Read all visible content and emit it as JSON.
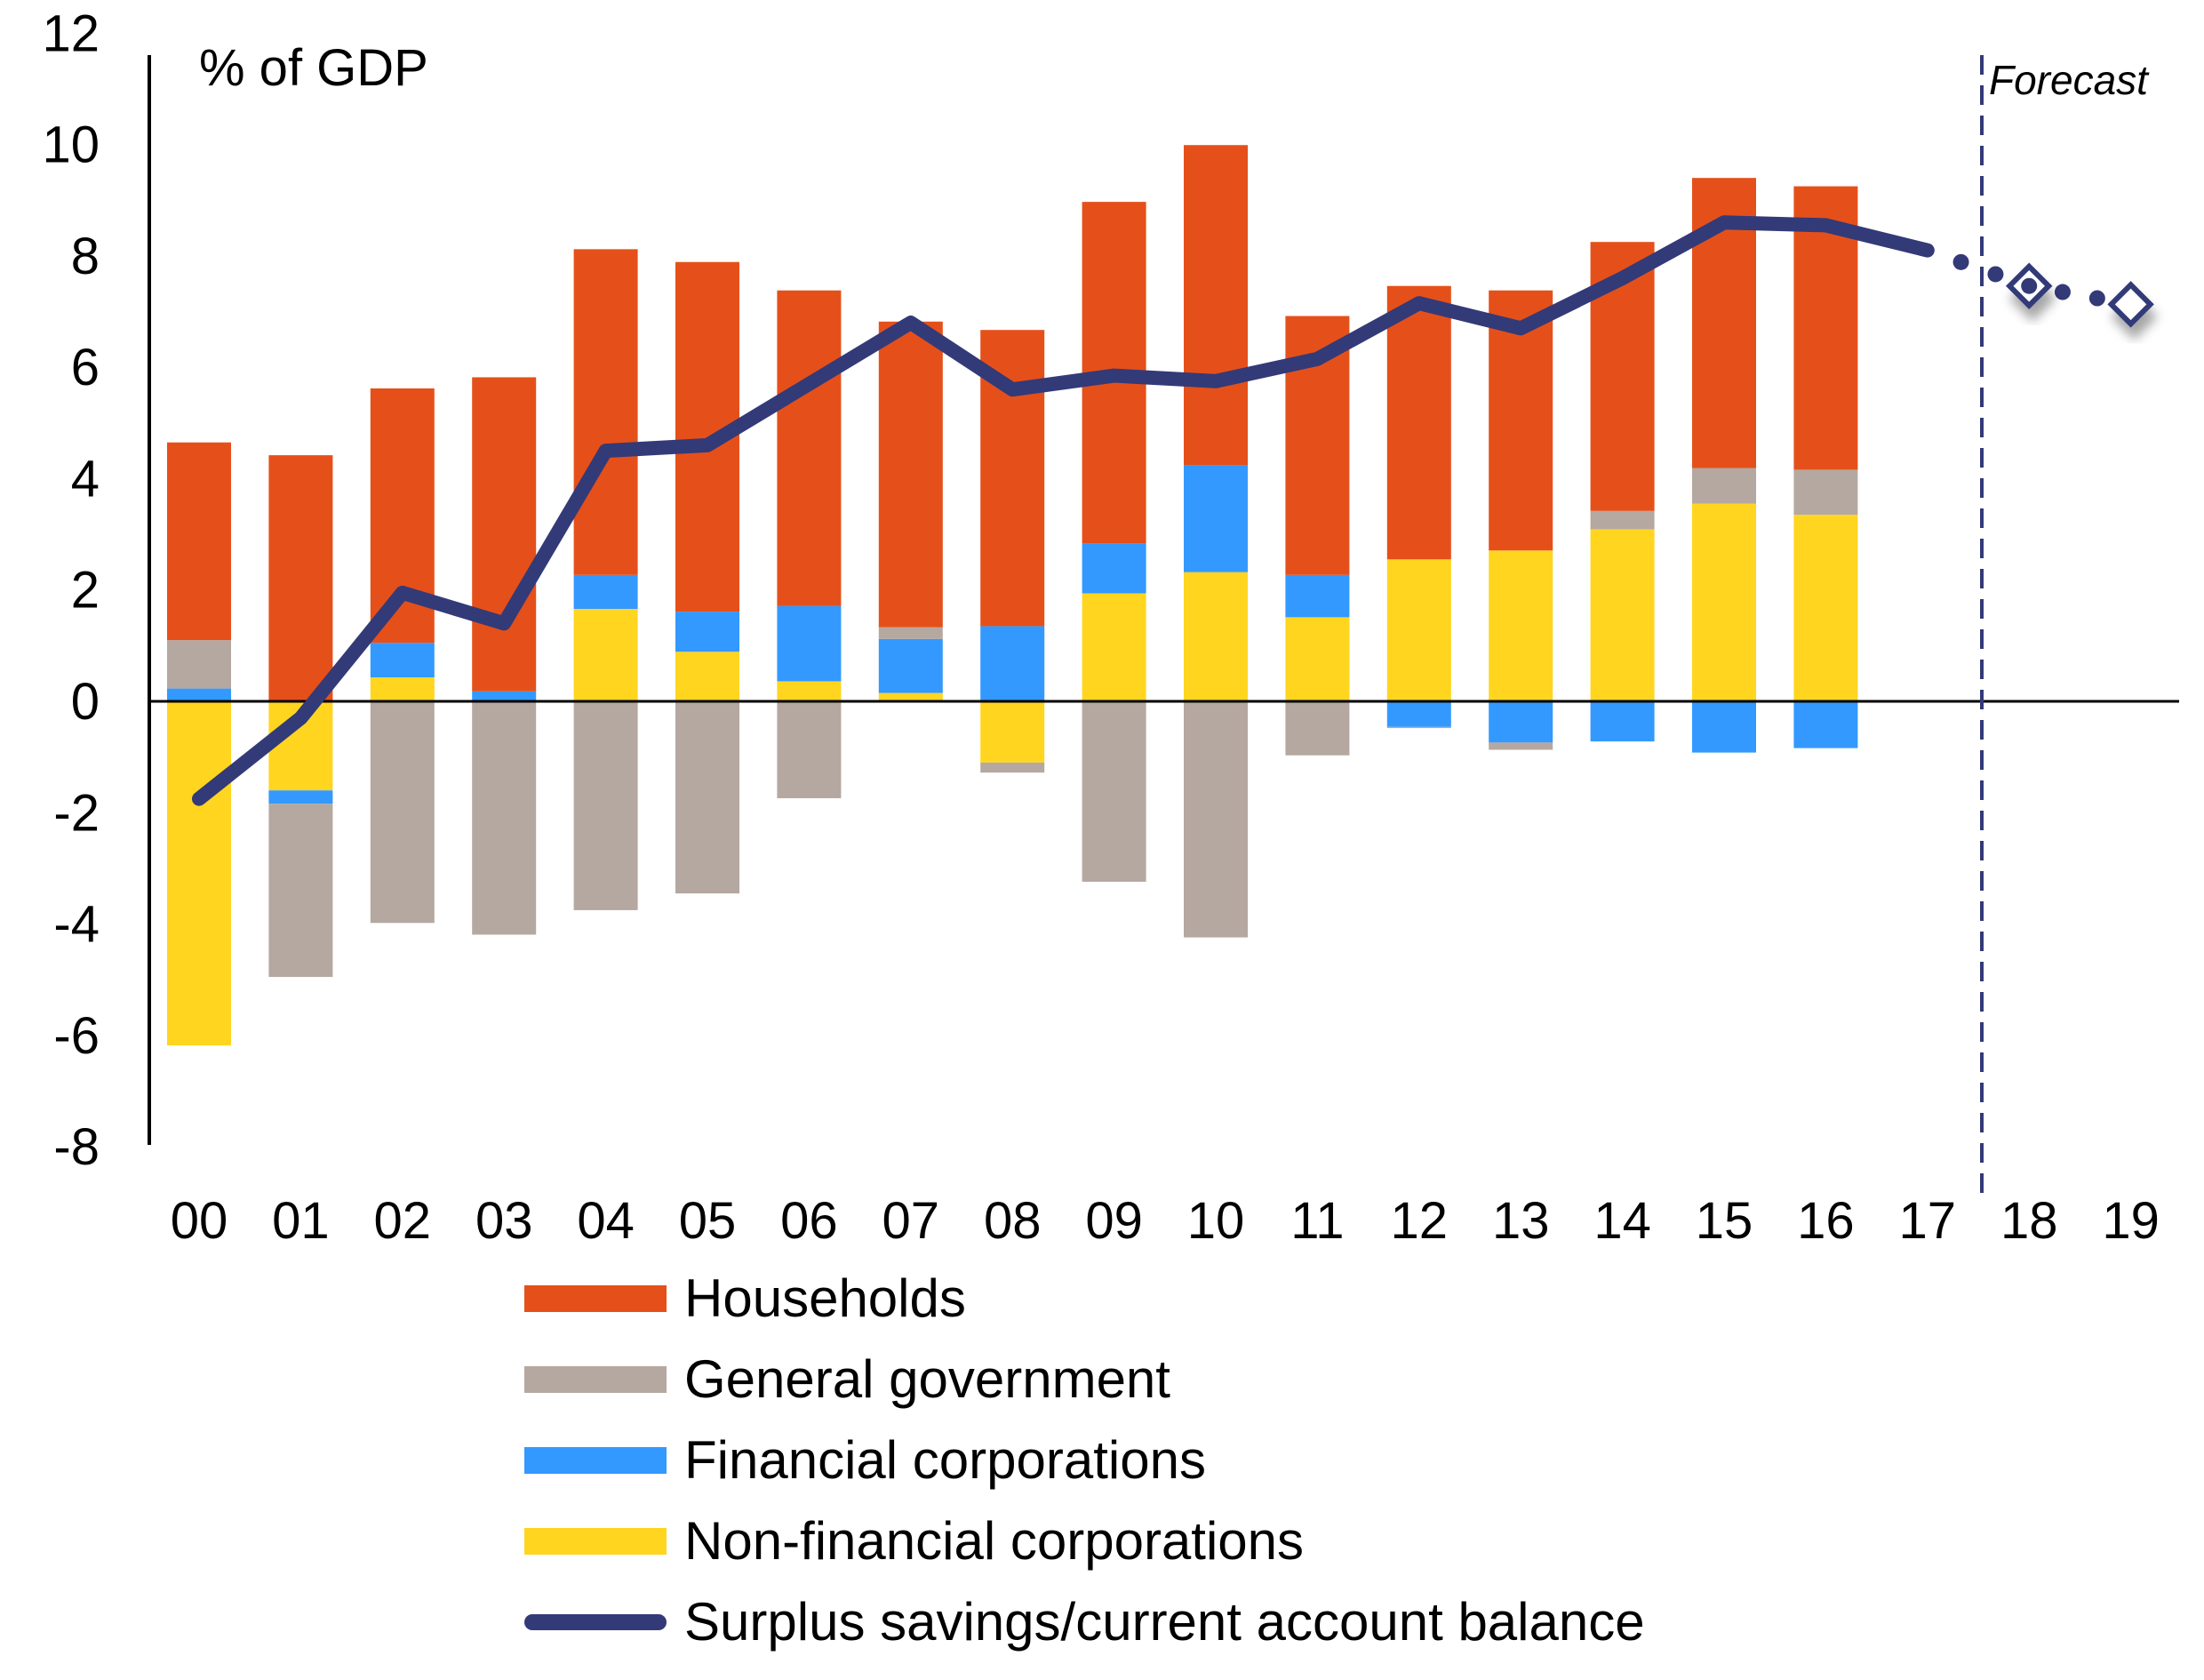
{
  "chart_data": {
    "type": "bar",
    "subtype": "stacked-bar-with-line",
    "title": "",
    "unit_label": "% of GDP",
    "xlabel": "",
    "ylabel": "% of GDP",
    "ylim": [
      -8,
      12
    ],
    "yticks": [
      12,
      10,
      8,
      6,
      4,
      2,
      0,
      -2,
      -4,
      -6,
      -8
    ],
    "grid": false,
    "legend_position": "bottom",
    "categories": [
      "00",
      "01",
      "02",
      "03",
      "04",
      "05",
      "06",
      "07",
      "08",
      "09",
      "10",
      "11",
      "12",
      "13",
      "14",
      "15",
      "16",
      "17",
      "18",
      "19"
    ],
    "forecast": {
      "label": "Forecast",
      "starts_after": "17"
    },
    "series": [
      {
        "name": "Households",
        "type": "bar",
        "color": "#E5501A",
        "values": [
          3.55,
          4.42,
          4.57,
          5.64,
          5.85,
          6.28,
          5.67,
          5.49,
          5.32,
          6.13,
          5.75,
          4.65,
          4.91,
          4.67,
          4.83,
          5.21,
          5.09,
          null,
          null,
          null
        ]
      },
      {
        "name": "General government",
        "type": "bar",
        "color": "#B5A8A0",
        "values": [
          0.87,
          -3.11,
          -3.98,
          -4.19,
          -3.75,
          -3.45,
          -1.74,
          0.21,
          -0.18,
          -3.24,
          -4.24,
          -0.97,
          -0.02,
          -0.13,
          0.33,
          0.64,
          0.81,
          null,
          null,
          null
        ]
      },
      {
        "name": "Financial corporations",
        "type": "bar",
        "color": "#3399FF",
        "values": [
          0.23,
          -0.24,
          0.62,
          0.18,
          0.61,
          0.72,
          1.35,
          0.97,
          1.35,
          0.9,
          1.92,
          0.76,
          -0.46,
          -0.74,
          -0.72,
          -0.92,
          -0.84,
          null,
          null,
          null
        ]
      },
      {
        "name": "Non-financial corporations",
        "type": "bar",
        "color": "#FFD520",
        "values": [
          -6.18,
          -1.6,
          0.43,
          0.0,
          1.66,
          0.89,
          0.36,
          0.15,
          -1.1,
          1.94,
          2.32,
          1.51,
          2.55,
          2.71,
          3.09,
          3.55,
          3.35,
          null,
          null,
          null
        ]
      },
      {
        "name": "Surplus savings/current account balance",
        "type": "line",
        "color": "#333A78",
        "values": [
          -1.75,
          -0.3,
          1.95,
          1.4,
          4.5,
          4.6,
          5.7,
          6.8,
          5.6,
          5.85,
          5.75,
          6.15,
          7.15,
          6.7,
          7.6,
          8.6,
          8.55,
          8.1,
          7.46,
          7.13
        ],
        "forecast_from": "17",
        "markers": {
          "18": "diamond-filled-dot",
          "19": "diamond-open"
        }
      }
    ]
  },
  "legend": {
    "items": [
      {
        "label": "Households",
        "color": "#E5501A",
        "kind": "bar"
      },
      {
        "label": "General government",
        "color": "#B5A8A0",
        "kind": "bar"
      },
      {
        "label": "Financial corporations",
        "color": "#3399FF",
        "kind": "bar"
      },
      {
        "label": "Non-financial corporations",
        "color": "#FFD520",
        "kind": "bar"
      },
      {
        "label": "Surplus savings/current account balance",
        "color": "#333A78",
        "kind": "line"
      }
    ]
  }
}
